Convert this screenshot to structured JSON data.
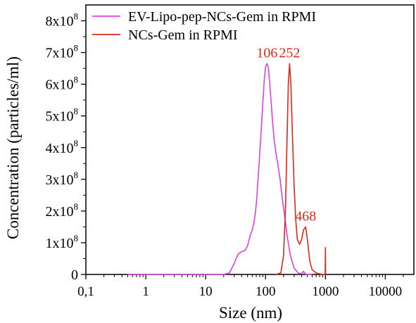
{
  "chart_data": {
    "type": "line",
    "title": "",
    "xlabel": "Size (nm)",
    "ylabel": "Concentration (particles/ml)",
    "x_scale": "log",
    "xlim": [
      0.1,
      30000
    ],
    "ylim": [
      0,
      850000000
    ],
    "x_ticks": [
      {
        "value": 0.1,
        "label": "0,1"
      },
      {
        "value": 1,
        "label": "1"
      },
      {
        "value": 10,
        "label": "10"
      },
      {
        "value": 100,
        "label": "100"
      },
      {
        "value": 1000,
        "label": "1000"
      },
      {
        "value": 10000,
        "label": "10000"
      }
    ],
    "y_ticks": [
      {
        "value": 0,
        "base": "0",
        "exp": ""
      },
      {
        "value": 100000000,
        "base": "1x10",
        "exp": "8"
      },
      {
        "value": 200000000,
        "base": "2x10",
        "exp": "8"
      },
      {
        "value": 300000000,
        "base": "3x10",
        "exp": "8"
      },
      {
        "value": 400000000,
        "base": "4x10",
        "exp": "8"
      },
      {
        "value": 500000000,
        "base": "5x10",
        "exp": "8"
      },
      {
        "value": 600000000,
        "base": "6x10",
        "exp": "8"
      },
      {
        "value": 700000000,
        "base": "7x10",
        "exp": "8"
      },
      {
        "value": 800000000,
        "base": "8x10",
        "exp": "8"
      }
    ],
    "grid": false,
    "legend_position": "top-left",
    "series": [
      {
        "name": "EV-Lipo-pep-NCs-Gem in RPMI",
        "color": "#e040e0",
        "points": [
          [
            0.5,
            0
          ],
          [
            20,
            0
          ],
          [
            25,
            5000000
          ],
          [
            30,
            35000000
          ],
          [
            35,
            65000000
          ],
          [
            40,
            72000000
          ],
          [
            45,
            75000000
          ],
          [
            50,
            90000000
          ],
          [
            55,
            120000000
          ],
          [
            60,
            140000000
          ],
          [
            65,
            170000000
          ],
          [
            70,
            220000000
          ],
          [
            75,
            300000000
          ],
          [
            80,
            380000000
          ],
          [
            85,
            460000000
          ],
          [
            90,
            540000000
          ],
          [
            95,
            610000000
          ],
          [
            100,
            655000000
          ],
          [
            106,
            665000000
          ],
          [
            112,
            650000000
          ],
          [
            120,
            580000000
          ],
          [
            130,
            490000000
          ],
          [
            140,
            420000000
          ],
          [
            150,
            380000000
          ],
          [
            160,
            350000000
          ],
          [
            175,
            300000000
          ],
          [
            190,
            240000000
          ],
          [
            210,
            180000000
          ],
          [
            230,
            120000000
          ],
          [
            260,
            60000000
          ],
          [
            300,
            20000000
          ],
          [
            350,
            5000000
          ],
          [
            400,
            2000000
          ],
          [
            430,
            10000000
          ],
          [
            460,
            2000000
          ],
          [
            500,
            0
          ],
          [
            600,
            0
          ]
        ]
      },
      {
        "name": "NCs-Gem in RPMI",
        "color": "#dd2a18",
        "points": [
          [
            150,
            0
          ],
          [
            180,
            5000000
          ],
          [
            200,
            60000000
          ],
          [
            215,
            200000000
          ],
          [
            230,
            450000000
          ],
          [
            240,
            600000000
          ],
          [
            252,
            665000000
          ],
          [
            265,
            600000000
          ],
          [
            280,
            450000000
          ],
          [
            300,
            280000000
          ],
          [
            320,
            170000000
          ],
          [
            340,
            110000000
          ],
          [
            370,
            95000000
          ],
          [
            400,
            110000000
          ],
          [
            430,
            140000000
          ],
          [
            468,
            150000000
          ],
          [
            500,
            110000000
          ],
          [
            550,
            40000000
          ],
          [
            600,
            15000000
          ],
          [
            700,
            5000000
          ],
          [
            800,
            2000000
          ],
          [
            900,
            0
          ],
          [
            990,
            0
          ],
          [
            1000,
            85000000
          ],
          [
            1005,
            0
          ]
        ]
      }
    ],
    "annotations": [
      {
        "text": "106",
        "x": 106,
        "y": 665000000,
        "color": "#dd2a18"
      },
      {
        "text": "252",
        "x": 252,
        "y": 665000000,
        "color": "#dd2a18"
      },
      {
        "text": "468",
        "x": 468,
        "y": 150000000,
        "color": "#dd2a18"
      }
    ]
  }
}
